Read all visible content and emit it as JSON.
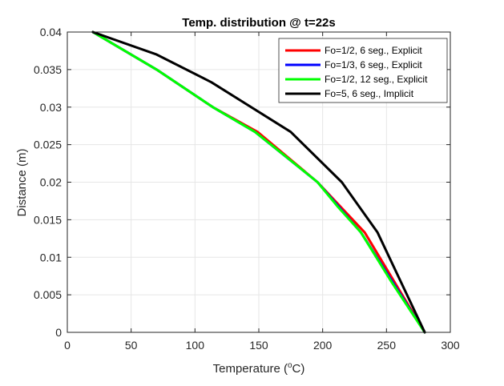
{
  "chart_data": {
    "type": "line",
    "title": "Temp. distribution @ t=22s",
    "xlabel": "Temperature (",
    "xlabel_sup": "o",
    "xlabel_tail": "C)",
    "ylabel": "Distance (m)",
    "xlim": [
      0,
      300
    ],
    "ylim": [
      0,
      0.04
    ],
    "xticks": [
      0,
      50,
      100,
      150,
      200,
      250,
      300
    ],
    "xtick_labels": [
      "0",
      "50",
      "100",
      "150",
      "200",
      "250",
      "300"
    ],
    "yticks": [
      0,
      0.005,
      0.01,
      0.015,
      0.02,
      0.025,
      0.03,
      0.035,
      0.04
    ],
    "ytick_labels": [
      "0",
      "0.005",
      "0.01",
      "0.015",
      "0.02",
      "0.025",
      "0.03",
      "0.035",
      "0.04"
    ],
    "grid": true,
    "legend_position": "top-right",
    "series": [
      {
        "name": "Fo=1/2, 6 seg., Explicit",
        "color": "#ff0000",
        "points": [
          [
            280,
            0
          ],
          [
            233,
            0.0133
          ],
          [
            196,
            0.02
          ],
          [
            149,
            0.0267
          ],
          [
            114,
            0.03
          ],
          [
            70,
            0.035
          ],
          [
            20,
            0.04
          ]
        ]
      },
      {
        "name": "Fo=1/3, 6 seg., Explicit",
        "color": "#0000ff",
        "points": [
          [
            280,
            0
          ],
          [
            230,
            0.0133
          ],
          [
            196,
            0.02
          ],
          [
            147,
            0.0267
          ],
          [
            114,
            0.03
          ],
          [
            70,
            0.035
          ],
          [
            20,
            0.04
          ]
        ]
      },
      {
        "name": "Fo=1/2, 12 seg., Explicit",
        "color": "#00ff00",
        "points": [
          [
            280,
            0
          ],
          [
            254,
            0.0067
          ],
          [
            230,
            0.0133
          ],
          [
            212,
            0.0167
          ],
          [
            196,
            0.02
          ],
          [
            172,
            0.0233
          ],
          [
            147,
            0.0267
          ],
          [
            114,
            0.03
          ],
          [
            70,
            0.035
          ],
          [
            20,
            0.04
          ]
        ]
      },
      {
        "name": "Fo=5, 6 seg., Implicit",
        "color": "#000000",
        "points": [
          [
            280,
            0
          ],
          [
            243,
            0.0133
          ],
          [
            215,
            0.02
          ],
          [
            175,
            0.0267
          ],
          [
            113,
            0.0333
          ],
          [
            70,
            0.037
          ],
          [
            20,
            0.04
          ]
        ]
      }
    ]
  }
}
